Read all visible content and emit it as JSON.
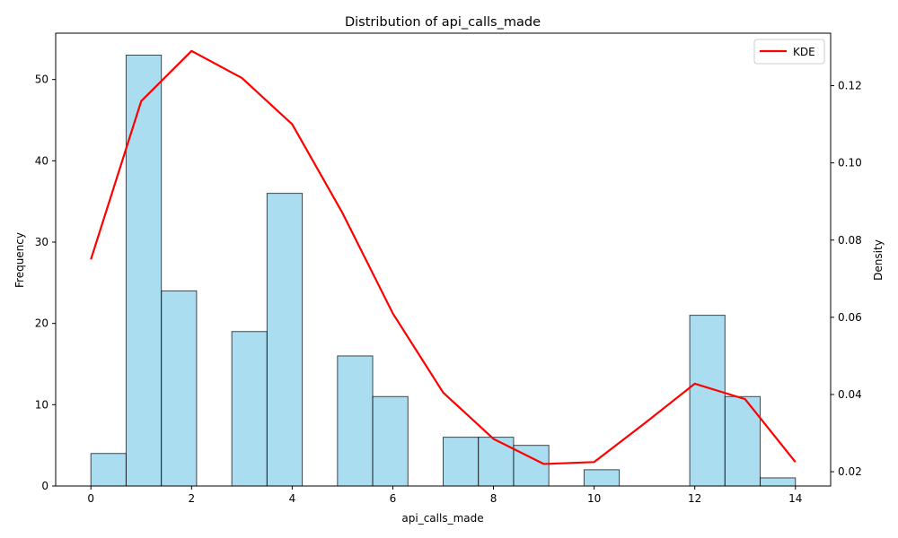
{
  "chart_data": {
    "type": "bar",
    "title": "Distribution of api_calls_made",
    "xlabel": "api_calls_made",
    "ylabel": "Frequency",
    "y2label": "Density",
    "xlim": [
      -0.7,
      14.7
    ],
    "ylim": [
      0,
      55.7
    ],
    "y2lim": [
      0.0163,
      0.1336
    ],
    "xticks": [
      0,
      2,
      4,
      6,
      8,
      10,
      12,
      14
    ],
    "yticks": [
      0,
      10,
      20,
      30,
      40,
      50
    ],
    "y2ticks": [
      0.02,
      0.04,
      0.06,
      0.08,
      0.1,
      0.12
    ],
    "y2tick_labels": [
      "0.02",
      "0.04",
      "0.06",
      "0.08",
      "0.10",
      "0.12"
    ],
    "bar_color": "#87CEEB",
    "bar_edge_color": "#000000",
    "histogram": {
      "bin_edges": [
        0,
        0.7,
        1.4,
        2.1,
        2.8,
        3.5,
        4.2,
        4.9,
        5.6,
        6.3,
        7.0,
        7.7,
        8.4,
        9.1,
        9.8,
        10.5,
        11.2,
        11.9,
        12.6,
        13.3,
        14.0
      ],
      "counts": [
        4,
        53,
        24,
        0,
        19,
        36,
        0,
        16,
        11,
        0,
        6,
        6,
        5,
        0,
        2,
        0,
        0,
        21,
        11,
        1
      ]
    },
    "series": [
      {
        "name": "KDE",
        "color": "#FF0000",
        "x": [
          0,
          1,
          2,
          3,
          4,
          5,
          6,
          7,
          8,
          9,
          10,
          11,
          12,
          13,
          14
        ],
        "values": [
          0.075,
          0.116,
          0.129,
          0.122,
          0.11,
          0.087,
          0.061,
          0.0405,
          0.0285,
          0.022,
          0.0225,
          0.0325,
          0.0428,
          0.0388,
          0.0225
        ]
      }
    ],
    "legend": {
      "position": "top-right"
    },
    "grid": false
  }
}
